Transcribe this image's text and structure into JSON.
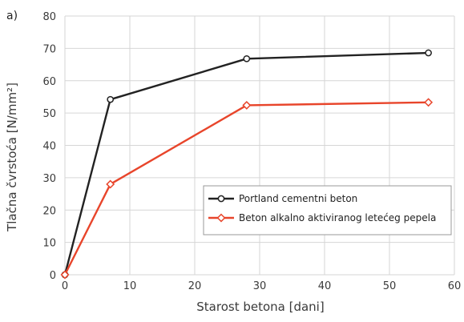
{
  "panel_label": "a)",
  "chart_data": {
    "type": "line",
    "xlabel": "Starost betona [dani]",
    "ylabel": "Tlačna čvrstoća [N/mm²]",
    "xlim": [
      0,
      60
    ],
    "ylim": [
      0,
      80
    ],
    "xticks": [
      0,
      10,
      20,
      30,
      40,
      50,
      60
    ],
    "yticks": [
      0,
      10,
      20,
      30,
      40,
      50,
      60,
      70,
      80
    ],
    "grid": "both",
    "legend_position": "bottom-right",
    "series": [
      {
        "name": "Portland cementni beton",
        "marker": "circle",
        "color": "#222222",
        "x": [
          0,
          7,
          28,
          56
        ],
        "y": [
          0,
          54.2,
          66.8,
          68.6
        ]
      },
      {
        "name": "Beton alkalno aktiviranog letećeg pepela",
        "marker": "diamond",
        "color": "#e8452b",
        "x": [
          0,
          7,
          28,
          56
        ],
        "y": [
          0,
          28.0,
          52.4,
          53.3
        ]
      }
    ]
  }
}
